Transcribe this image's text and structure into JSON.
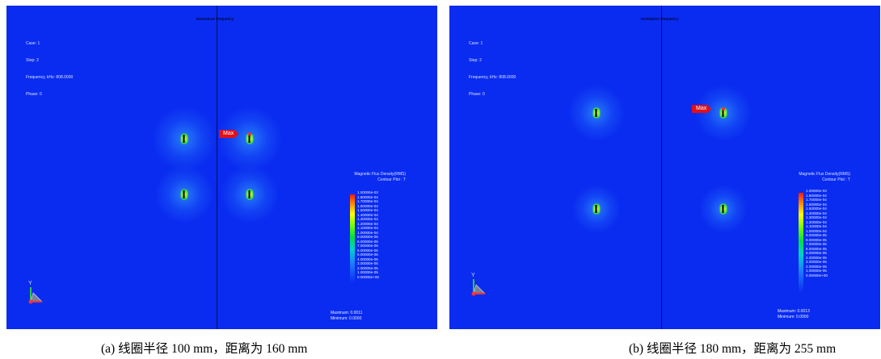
{
  "panels": [
    {
      "header": "resonance frequency",
      "info": [
        "Case: 1",
        "Step: 2",
        "Frequency, kHz: 808.0000",
        "Phase: 0"
      ],
      "max_label": "Max",
      "legend_title": [
        "Magnetic Flux Density(RMS)",
        "Contour Plot : T"
      ],
      "ticks": [
        "1.00000e-03",
        "1.80000e-04",
        "1.70000e-04",
        "1.60000e-04",
        "1.50000e-04",
        "1.40000e-04",
        "1.30000e-04",
        "1.20000e-04",
        "1.10000e-04",
        "1.00000e-04",
        "9.00000e-05",
        "8.00000e-05",
        "7.00000e-05",
        "6.00000e-05",
        "5.00000e-05",
        "4.00000e-05",
        "3.00000e-05",
        "2.00000e-05",
        "1.00000e-05",
        "0.00000e+00"
      ],
      "maximum": "Maximum: 0.0011",
      "minimum": "Minimum: 0.0000",
      "axis_label": "Y",
      "caption": "(a)  线圈半径 100 mm，距离为 160 mm"
    },
    {
      "header": "resonance frequency",
      "info": [
        "Case: 1",
        "Step: 2",
        "Frequency, kHz: 808.0000",
        "Phase: 0"
      ],
      "max_label": "Max",
      "legend_title": [
        "Magnetic Flux Density(RMS)",
        "Contour Plot : T"
      ],
      "ticks": [
        "1.00000e-03",
        "1.80000e-04",
        "1.70000e-04",
        "1.60000e-04",
        "1.50000e-04",
        "1.40000e-04",
        "1.30000e-04",
        "1.20000e-04",
        "1.10000e-04",
        "1.00000e-04",
        "9.00000e-05",
        "8.00000e-05",
        "7.00000e-05",
        "6.00000e-05",
        "5.00000e-05",
        "4.00000e-05",
        "3.00000e-05",
        "2.00000e-05",
        "1.00000e-05",
        "0.00000e+00"
      ],
      "maximum": "Maximum: 0.0013",
      "minimum": "Minimum: 0.0000",
      "axis_label": "Y",
      "caption": "(b)  线圈半径 180 mm，距离为 255 mm"
    }
  ],
  "colors": {
    "background": "#0a2bf0",
    "max_marker": "#e0101a",
    "colorbar_top": "#ff1a00",
    "colorbar_bottom": "#0a2bf0"
  }
}
